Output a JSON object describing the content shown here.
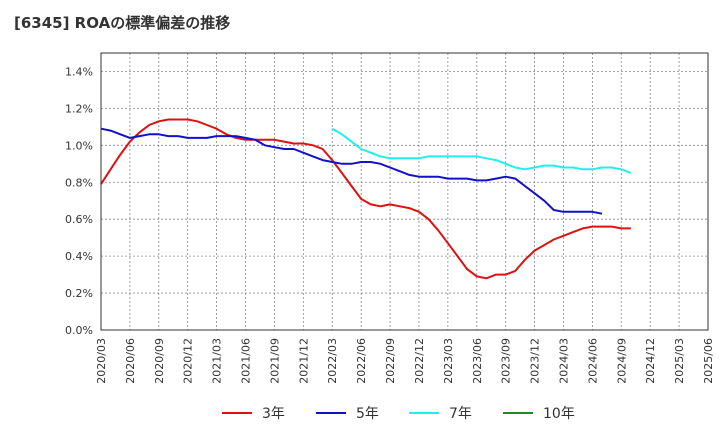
{
  "chart_data": {
    "type": "line",
    "title": "[6345]  ROAの標準偏差の推移",
    "xlabel": "",
    "ylabel": "",
    "ylim": [
      0,
      1.5
    ],
    "grid": true,
    "legend_placement": "bottom",
    "y_ticks": [
      "0.0%",
      "0.2%",
      "0.4%",
      "0.6%",
      "0.8%",
      "1.0%",
      "1.2%",
      "1.4%"
    ],
    "x_ticks": [
      "2020/03",
      "2020/06",
      "2020/09",
      "2020/12",
      "2021/03",
      "2021/06",
      "2021/09",
      "2021/12",
      "2022/03",
      "2022/06",
      "2022/09",
      "2022/12",
      "2023/03",
      "2023/06",
      "2023/09",
      "2023/12",
      "2024/03",
      "2024/06",
      "2024/09",
      "2024/12",
      "2025/03",
      "2025/06"
    ],
    "x_start": "2020/03",
    "series": [
      {
        "name": "3年",
        "color": "#dd1111",
        "start": "2020/03",
        "values": [
          0.79,
          0.87,
          0.95,
          1.02,
          1.07,
          1.11,
          1.13,
          1.14,
          1.14,
          1.14,
          1.13,
          1.11,
          1.09,
          1.06,
          1.04,
          1.03,
          1.03,
          1.03,
          1.03,
          1.02,
          1.01,
          1.01,
          1.0,
          0.98,
          0.92,
          0.85,
          0.78,
          0.71,
          0.68,
          0.67,
          0.68,
          0.67,
          0.66,
          0.64,
          0.6,
          0.54,
          0.47,
          0.4,
          0.33,
          0.29,
          0.28,
          0.3,
          0.3,
          0.32,
          0.38,
          0.43,
          0.46,
          0.49,
          0.51,
          0.53,
          0.55,
          0.56,
          0.56,
          0.56,
          0.55,
          0.55
        ]
      },
      {
        "name": "5年",
        "color": "#1111cc",
        "start": "2020/03",
        "values": [
          1.09,
          1.08,
          1.06,
          1.04,
          1.05,
          1.06,
          1.06,
          1.05,
          1.05,
          1.04,
          1.04,
          1.04,
          1.05,
          1.05,
          1.05,
          1.04,
          1.03,
          1.0,
          0.99,
          0.98,
          0.98,
          0.96,
          0.94,
          0.92,
          0.91,
          0.9,
          0.9,
          0.91,
          0.91,
          0.9,
          0.88,
          0.86,
          0.84,
          0.83,
          0.83,
          0.83,
          0.82,
          0.82,
          0.82,
          0.81,
          0.81,
          0.82,
          0.83,
          0.82,
          0.78,
          0.74,
          0.7,
          0.65,
          0.64,
          0.64,
          0.64,
          0.64,
          0.63
        ]
      },
      {
        "name": "7年",
        "color": "#22eeee",
        "start": "2022/03",
        "values": [
          1.09,
          1.06,
          1.02,
          0.98,
          0.96,
          0.94,
          0.93,
          0.93,
          0.93,
          0.93,
          0.94,
          0.94,
          0.94,
          0.94,
          0.94,
          0.94,
          0.93,
          0.92,
          0.9,
          0.88,
          0.87,
          0.88,
          0.89,
          0.89,
          0.88,
          0.88,
          0.87,
          0.87,
          0.88,
          0.88,
          0.87,
          0.85
        ]
      },
      {
        "name": "10年",
        "color": "#228822",
        "start": "2020/03",
        "values": []
      }
    ]
  }
}
